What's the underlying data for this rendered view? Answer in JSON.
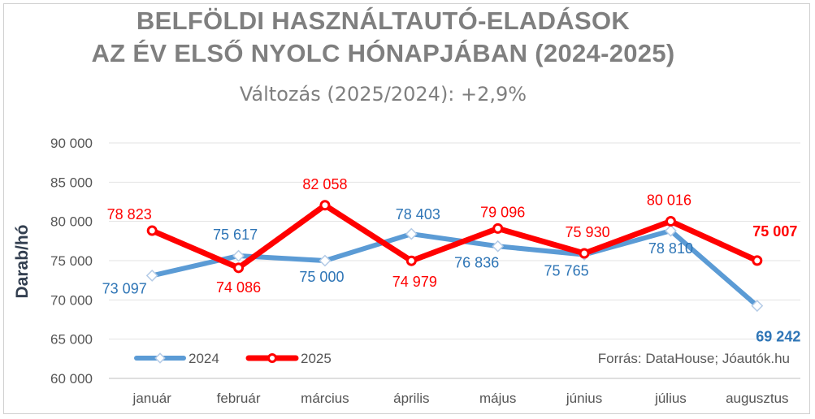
{
  "chart_data": {
    "type": "line",
    "title_line1": "BELFÖLDI HASZNÁLTAUTÓ-ELADÁSOK",
    "title_line2": "AZ ÉV ELSŐ NYOLC HÓNAPJÁBAN (2024-2025)",
    "subtitle": "Változás (2025/2024): +2,9%",
    "ylabel": "Darab/hó",
    "ylim": [
      60000,
      90000
    ],
    "yticks": [
      60000,
      65000,
      70000,
      75000,
      80000,
      85000,
      90000
    ],
    "ytick_labels": [
      "60 000",
      "65 000",
      "70 000",
      "75 000",
      "80 000",
      "85 000",
      "90 000"
    ],
    "categories": [
      "január",
      "február",
      "március",
      "április",
      "május",
      "június",
      "július",
      "augusztus"
    ],
    "series": [
      {
        "name": "2024",
        "color": "#5b9bd5",
        "values": [
          73097,
          75617,
          75000,
          78403,
          76836,
          75765,
          78810,
          69242
        ],
        "labels": [
          "73 097",
          "75 617",
          "75 000",
          "78 403",
          "76 836",
          "75 765",
          "78 810",
          "69 242"
        ]
      },
      {
        "name": "2025",
        "color": "#ff0000",
        "values": [
          78823,
          74086,
          82058,
          74979,
          79096,
          75930,
          80016,
          75007
        ],
        "labels": [
          "78 823",
          "74 086",
          "82 058",
          "74 979",
          "79 096",
          "75 930",
          "80 016",
          "75 007"
        ]
      }
    ],
    "legend_position": "bottom-left",
    "source": "Forrás: DataHouse; Jóautók.hu"
  }
}
